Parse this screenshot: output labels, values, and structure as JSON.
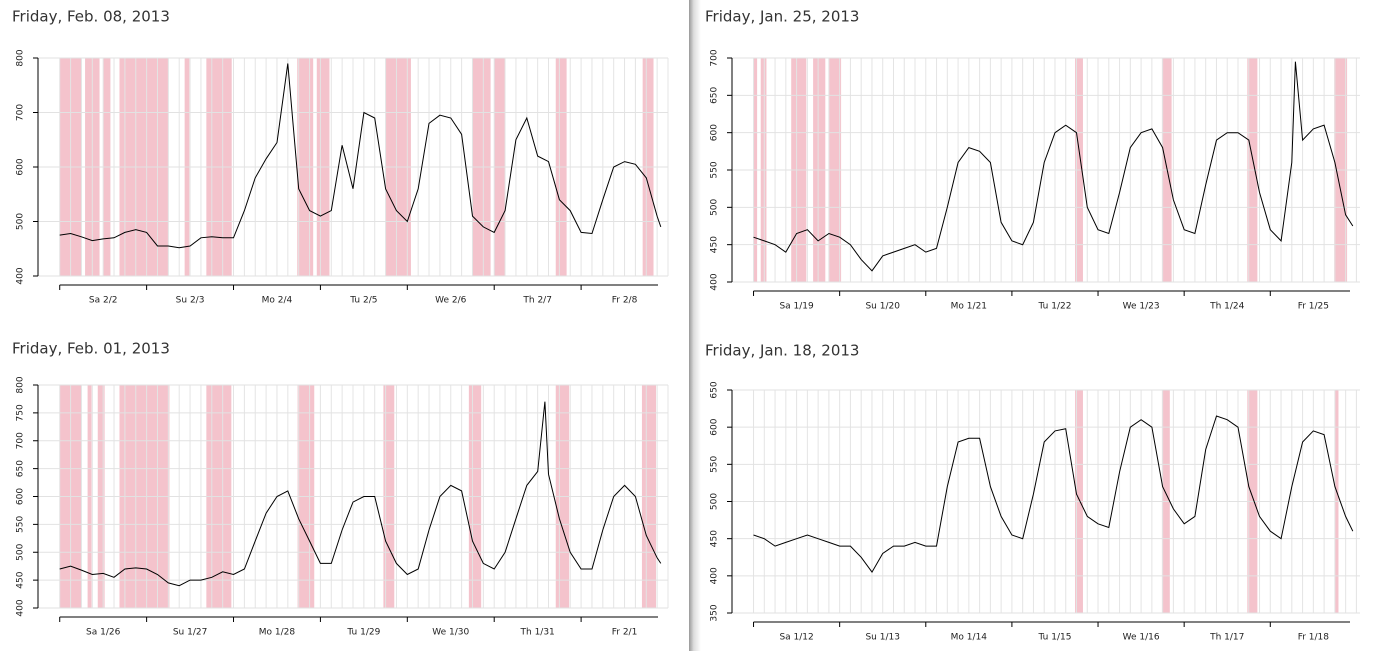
{
  "chart_data": [
    {
      "type": "line",
      "title": "Friday, Feb. 08, 2013",
      "categories": [
        "Sa 2/2",
        "Su 2/3",
        "Mo 2/4",
        "Tu 2/5",
        "We 2/6",
        "Th 2/7",
        "Fr 2/8"
      ],
      "xlim": [
        -6,
        168
      ],
      "xticks": [
        0,
        24,
        48,
        72,
        96,
        120,
        144
      ],
      "ylim": [
        400,
        800
      ],
      "yticks": [
        400,
        500,
        600,
        700,
        800
      ],
      "grid": true,
      "band_color": "#f4c3cc",
      "bands": [
        [
          0,
          6
        ],
        [
          7,
          11
        ],
        [
          12,
          14
        ],
        [
          16.5,
          30
        ],
        [
          34.5,
          35.8
        ],
        [
          40.5,
          47.5
        ],
        [
          65.6,
          70
        ],
        [
          71,
          74.5
        ],
        [
          90,
          97
        ],
        [
          114,
          119
        ],
        [
          120,
          123
        ],
        [
          137,
          140
        ],
        [
          161,
          164
        ]
      ],
      "x": [
        0,
        3,
        6,
        9,
        12,
        15,
        18,
        21,
        24,
        27,
        30,
        33,
        36,
        39,
        42,
        45,
        48,
        51,
        54,
        57,
        60,
        63,
        66,
        69,
        72,
        75,
        78,
        81,
        84,
        87,
        90,
        93,
        96,
        99,
        102,
        105,
        108,
        111,
        114,
        117,
        120,
        123,
        126,
        129,
        132,
        135,
        138,
        141,
        144,
        147,
        150,
        153,
        156,
        159,
        162,
        165,
        166
      ],
      "series": [
        {
          "color": "#000000",
          "values": [
            475,
            478,
            472,
            465,
            468,
            470,
            480,
            485,
            480,
            455,
            455,
            452,
            455,
            470,
            472,
            470,
            470,
            520,
            580,
            615,
            645,
            790,
            560,
            520,
            510,
            520,
            640,
            560,
            700,
            690,
            560,
            520,
            500,
            560,
            680,
            695,
            690,
            660,
            510,
            490,
            480,
            520,
            650,
            690,
            620,
            610,
            540,
            520,
            480,
            478,
            540,
            600,
            610,
            605,
            580,
            510,
            490
          ]
        }
      ]
    },
    {
      "type": "line",
      "title": "Friday, Jan. 25, 2013",
      "categories": [
        "Sa 1/19",
        "Su 1/20",
        "Mo 1/21",
        "Tu 1/22",
        "We 1/23",
        "Th 1/24",
        "Fr 1/25"
      ],
      "xlim": [
        -6,
        169
      ],
      "xticks": [
        0,
        24,
        48,
        72,
        96,
        120,
        144
      ],
      "ylim": [
        400,
        700
      ],
      "yticks": [
        400,
        450,
        500,
        550,
        600,
        650,
        700
      ],
      "grid": true,
      "band_color": "#f4c3cc",
      "bands": [
        [
          0,
          1
        ],
        [
          2,
          3.6
        ],
        [
          10.5,
          14.7
        ],
        [
          16.6,
          20
        ],
        [
          21,
          24.4
        ],
        [
          89.6,
          91.8
        ],
        [
          113.8,
          116.5
        ],
        [
          137.6,
          140.4
        ],
        [
          161.8,
          165.4
        ]
      ],
      "x": [
        0,
        3,
        6,
        9,
        12,
        15,
        18,
        21,
        24,
        27,
        30,
        33,
        36,
        39,
        42,
        45,
        48,
        51,
        54,
        57,
        60,
        63,
        66,
        69,
        72,
        75,
        78,
        81,
        84,
        87,
        90,
        93,
        96,
        99,
        102,
        105,
        108,
        111,
        114,
        117,
        120,
        123,
        126,
        129,
        132,
        135,
        138,
        141,
        144,
        147,
        150,
        151,
        153,
        156,
        159,
        162,
        165,
        167
      ],
      "series": [
        {
          "color": "#000000",
          "values": [
            460,
            455,
            450,
            440,
            465,
            470,
            455,
            465,
            460,
            450,
            430,
            415,
            435,
            440,
            445,
            450,
            440,
            445,
            500,
            560,
            580,
            575,
            560,
            480,
            455,
            450,
            480,
            560,
            600,
            610,
            600,
            500,
            470,
            465,
            520,
            580,
            600,
            605,
            580,
            510,
            470,
            465,
            530,
            590,
            600,
            600,
            590,
            520,
            470,
            455,
            560,
            695,
            590,
            605,
            610,
            560,
            490,
            475
          ]
        }
      ]
    },
    {
      "type": "line",
      "title": "Friday, Feb. 01, 2013",
      "categories": [
        "Sa 1/26",
        "Su 1/27",
        "Mo 1/28",
        "Tu 1/29",
        "We 1/30",
        "Th 1/31",
        "Fr 2/1"
      ],
      "xlim": [
        -6,
        168
      ],
      "xticks": [
        0,
        24,
        48,
        72,
        96,
        120,
        144
      ],
      "ylim": [
        400,
        800
      ],
      "yticks": [
        400,
        450,
        500,
        550,
        600,
        650,
        700,
        750,
        800
      ],
      "grid": true,
      "band_color": "#f4c3cc",
      "bands": [
        [
          0,
          6
        ],
        [
          7.7,
          8.8
        ],
        [
          10.5,
          12.4
        ],
        [
          16.5,
          30.3
        ],
        [
          40.5,
          47.4
        ],
        [
          65.7,
          70.3
        ],
        [
          89.4,
          92.4
        ],
        [
          113,
          116.4
        ],
        [
          137,
          140.7
        ],
        [
          160.8,
          164.7
        ]
      ],
      "x": [
        0,
        3,
        6,
        9,
        12,
        15,
        18,
        21,
        24,
        27,
        30,
        33,
        36,
        39,
        42,
        45,
        48,
        51,
        54,
        57,
        60,
        63,
        66,
        69,
        72,
        75,
        78,
        81,
        84,
        87,
        90,
        93,
        96,
        99,
        102,
        105,
        108,
        111,
        114,
        117,
        120,
        123,
        126,
        129,
        132,
        134,
        135,
        138,
        141,
        144,
        147,
        150,
        153,
        156,
        159,
        162,
        165,
        166
      ],
      "series": [
        {
          "color": "#000000",
          "values": [
            470,
            475,
            468,
            460,
            462,
            455,
            470,
            472,
            470,
            460,
            445,
            440,
            450,
            450,
            455,
            465,
            460,
            470,
            520,
            570,
            600,
            610,
            560,
            520,
            480,
            480,
            540,
            590,
            600,
            600,
            520,
            480,
            460,
            470,
            540,
            600,
            620,
            610,
            520,
            480,
            470,
            500,
            560,
            620,
            645,
            770,
            640,
            560,
            500,
            470,
            470,
            540,
            600,
            620,
            600,
            530,
            490,
            480
          ]
        }
      ]
    },
    {
      "type": "line",
      "title": "Friday, Jan. 18, 2013",
      "categories": [
        "Sa 1/12",
        "Su 1/13",
        "Mo 1/14",
        "Tu 1/15",
        "We 1/16",
        "Th 1/17",
        "Fr 1/18"
      ],
      "xlim": [
        -6,
        169
      ],
      "xticks": [
        0,
        24,
        48,
        72,
        96,
        120,
        144
      ],
      "ylim": [
        350,
        650
      ],
      "yticks": [
        350,
        400,
        450,
        500,
        550,
        600,
        650
      ],
      "grid": true,
      "band_color": "#f4c3cc",
      "bands": [
        [
          89.6,
          91.8
        ],
        [
          113.8,
          116
        ],
        [
          137.6,
          140.4
        ],
        [
          162,
          163
        ]
      ],
      "x": [
        0,
        3,
        6,
        9,
        12,
        15,
        18,
        21,
        24,
        27,
        30,
        33,
        36,
        39,
        42,
        45,
        48,
        51,
        54,
        57,
        60,
        63,
        66,
        69,
        72,
        75,
        78,
        81,
        84,
        87,
        90,
        93,
        96,
        99,
        102,
        105,
        108,
        111,
        114,
        117,
        120,
        123,
        126,
        129,
        132,
        135,
        138,
        141,
        144,
        147,
        150,
        153,
        156,
        159,
        162,
        165,
        167
      ],
      "series": [
        {
          "color": "#000000",
          "values": [
            455,
            450,
            440,
            445,
            450,
            455,
            450,
            445,
            440,
            440,
            425,
            405,
            430,
            440,
            440,
            445,
            440,
            440,
            520,
            580,
            585,
            585,
            520,
            480,
            455,
            450,
            510,
            580,
            595,
            598,
            510,
            480,
            470,
            465,
            540,
            600,
            610,
            600,
            520,
            490,
            470,
            480,
            570,
            615,
            610,
            600,
            520,
            480,
            460,
            450,
            520,
            580,
            595,
            590,
            520,
            480,
            460
          ]
        }
      ]
    }
  ]
}
